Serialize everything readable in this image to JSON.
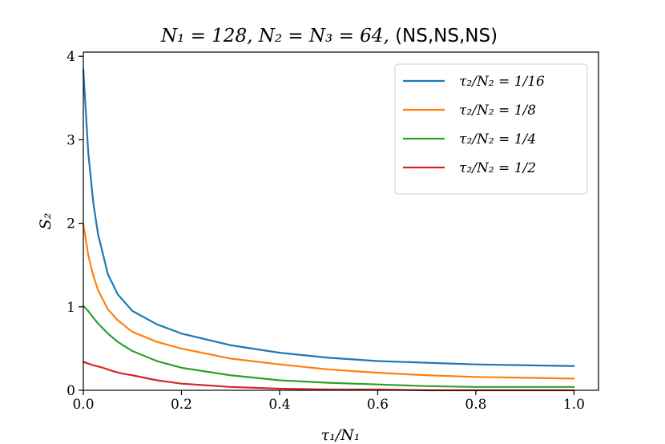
{
  "chart_data": {
    "type": "line",
    "title": "N₁ = 128, N₂ = N₃ = 64, (NS,NS,NS)",
    "title_math": "N₁ = 128, N₂ = N₃ = 64, ",
    "title_text": "(NS,NS,NS)",
    "xlabel": "τ₁/N₁",
    "ylabel": "S₂",
    "xlim": [
      0.0,
      1.05
    ],
    "ylim": [
      0,
      4.05
    ],
    "xticks": [
      0.0,
      0.2,
      0.4,
      0.6,
      0.8,
      1.0
    ],
    "xtick_labels": [
      "0.0",
      "0.2",
      "0.4",
      "0.6",
      "0.8",
      "1.0"
    ],
    "yticks": [
      0,
      1,
      2,
      3,
      4
    ],
    "ytick_labels": [
      "0",
      "1",
      "2",
      "3",
      "4"
    ],
    "grid": false,
    "legend_position": "top-right",
    "series": [
      {
        "name": "τ₂/N₂ = 1/16",
        "color": "#1f77b4",
        "x": [
          0.0,
          0.01,
          0.02,
          0.03,
          0.05,
          0.07,
          0.1,
          0.15,
          0.2,
          0.3,
          0.4,
          0.5,
          0.6,
          0.7,
          0.8,
          0.9,
          1.0
        ],
        "y": [
          3.84,
          2.85,
          2.26,
          1.87,
          1.39,
          1.15,
          0.95,
          0.79,
          0.68,
          0.54,
          0.45,
          0.39,
          0.35,
          0.33,
          0.31,
          0.3,
          0.29
        ]
      },
      {
        "name": "τ₂/N₂ = 1/8",
        "color": "#ff7f0e",
        "x": [
          0.0,
          0.01,
          0.02,
          0.03,
          0.05,
          0.07,
          0.1,
          0.15,
          0.2,
          0.3,
          0.4,
          0.5,
          0.6,
          0.7,
          0.8,
          0.9,
          1.0
        ],
        "y": [
          1.99,
          1.62,
          1.38,
          1.2,
          0.97,
          0.84,
          0.7,
          0.58,
          0.5,
          0.38,
          0.31,
          0.25,
          0.21,
          0.18,
          0.16,
          0.15,
          0.14
        ]
      },
      {
        "name": "τ₂/N₂ = 1/4",
        "color": "#2ca02c",
        "x": [
          0.0,
          0.01,
          0.02,
          0.03,
          0.05,
          0.07,
          0.1,
          0.15,
          0.2,
          0.3,
          0.4,
          0.5,
          0.6,
          0.7,
          0.8,
          0.9,
          1.0
        ],
        "y": [
          1.01,
          0.95,
          0.87,
          0.8,
          0.68,
          0.58,
          0.47,
          0.35,
          0.27,
          0.18,
          0.12,
          0.09,
          0.07,
          0.05,
          0.04,
          0.04,
          0.04
        ]
      },
      {
        "name": "τ₂/N₂ = 1/2",
        "color": "#d62728",
        "x": [
          0.0,
          0.02,
          0.04,
          0.06,
          0.08,
          0.1,
          0.15,
          0.2,
          0.25,
          0.3,
          0.4,
          0.5,
          0.6,
          0.7,
          0.8,
          0.9,
          1.0
        ],
        "y": [
          0.34,
          0.3,
          0.27,
          0.23,
          0.2,
          0.18,
          0.12,
          0.08,
          0.06,
          0.04,
          0.02,
          0.01,
          0.01,
          0.0,
          0.0,
          0.0,
          0.0
        ]
      }
    ]
  }
}
